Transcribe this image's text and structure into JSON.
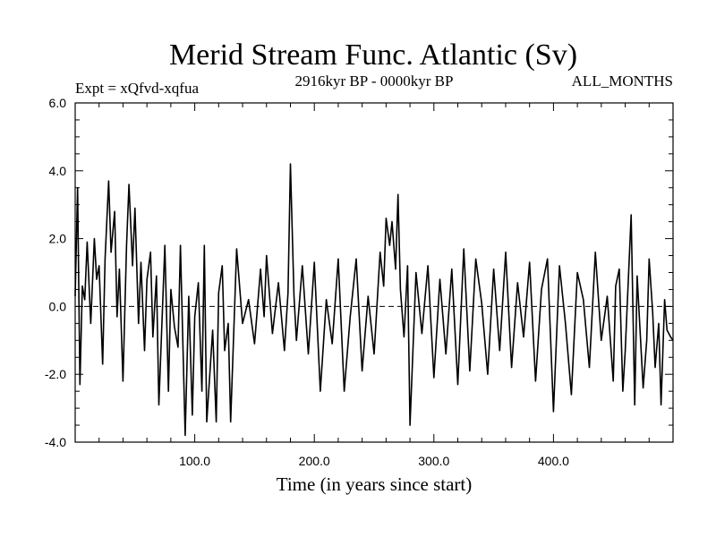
{
  "chart_data": {
    "type": "line",
    "title": "Merid Stream Func. Atlantic (Sv)",
    "subtitle_left": "Expt = xQfvd-xqfua",
    "subtitle_center": "2916kyr BP - 0000kyr BP",
    "subtitle_right": "ALL_MONTHS",
    "xlabel": "Time (in years since start)",
    "ylabel": "",
    "xlim": [
      0,
      500
    ],
    "ylim": [
      -4.0,
      6.0
    ],
    "x_ticks": [
      100.0,
      200.0,
      300.0,
      400.0
    ],
    "x_tick_labels": [
      "100.0",
      "200.0",
      "300.0",
      "400.0"
    ],
    "y_ticks": [
      -4.0,
      -2.0,
      0.0,
      2.0,
      4.0,
      6.0
    ],
    "y_tick_labels": [
      "-4.0",
      "-2.0",
      "0.0",
      "2.0",
      "4.0",
      "6.0"
    ],
    "reference_line": 0.0,
    "series": [
      {
        "name": "Merid Stream Func. Atlantic",
        "x": [
          0,
          2,
          4,
          6,
          8,
          10,
          13,
          16,
          18,
          20,
          23,
          25,
          28,
          30,
          33,
          35,
          37,
          40,
          43,
          45,
          48,
          50,
          53,
          55,
          58,
          60,
          63,
          65,
          68,
          70,
          75,
          78,
          80,
          83,
          86,
          88,
          92,
          95,
          98,
          100,
          103,
          106,
          108,
          110,
          115,
          118,
          120,
          123,
          125,
          128,
          130,
          135,
          140,
          145,
          150,
          155,
          158,
          160,
          165,
          170,
          175,
          178,
          180,
          183,
          185,
          190,
          195,
          200,
          205,
          210,
          215,
          220,
          225,
          230,
          235,
          240,
          245,
          250,
          255,
          258,
          260,
          263,
          265,
          268,
          270,
          272,
          275,
          278,
          280,
          285,
          290,
          295,
          300,
          305,
          310,
          315,
          320,
          325,
          330,
          335,
          340,
          345,
          350,
          355,
          360,
          365,
          370,
          375,
          380,
          385,
          390,
          395,
          400,
          405,
          410,
          415,
          420,
          425,
          430,
          435,
          440,
          445,
          450,
          452,
          455,
          458,
          460,
          465,
          468,
          470,
          475,
          478,
          480,
          483,
          485,
          488,
          490,
          493,
          495,
          498,
          500
        ],
        "values": [
          0.3,
          3.5,
          -2.3,
          0.6,
          0.2,
          1.9,
          -0.5,
          2.0,
          0.8,
          1.2,
          -1.7,
          1.4,
          3.7,
          1.6,
          2.8,
          -0.3,
          1.1,
          -2.2,
          1.8,
          3.6,
          1.2,
          2.9,
          -0.5,
          1.3,
          -1.3,
          0.8,
          1.6,
          -0.9,
          0.9,
          -2.9,
          1.8,
          -2.5,
          0.5,
          -0.6,
          -1.2,
          1.8,
          -3.8,
          0.3,
          -3.2,
          -0.3,
          0.7,
          -2.5,
          1.8,
          -3.4,
          -0.7,
          -3.4,
          0.4,
          1.2,
          -1.3,
          -0.5,
          -3.4,
          1.7,
          -0.5,
          0.2,
          -1.1,
          1.1,
          -0.3,
          1.5,
          -0.8,
          0.7,
          -1.3,
          0.4,
          4.2,
          0.3,
          -1.0,
          1.2,
          -1.4,
          1.3,
          -2.5,
          0.2,
          -1.1,
          1.4,
          -2.5,
          -0.3,
          1.4,
          -1.9,
          0.3,
          -1.4,
          1.6,
          0.6,
          2.6,
          1.8,
          2.5,
          1.1,
          3.3,
          0.5,
          -0.9,
          1.2,
          -3.5,
          1.0,
          -0.8,
          1.2,
          -2.1,
          0.8,
          -1.4,
          1.1,
          -2.3,
          1.7,
          -1.9,
          1.4,
          0.1,
          -2.0,
          1.1,
          -1.3,
          1.6,
          -1.8,
          0.7,
          -0.9,
          1.3,
          -2.2,
          0.5,
          1.4,
          -3.1,
          1.2,
          -0.5,
          -2.6,
          1.0,
          0.2,
          -1.8,
          1.6,
          -1.0,
          0.3,
          -2.2,
          0.6,
          1.1,
          -2.5,
          -1.3,
          2.7,
          -2.9,
          0.9,
          -2.4,
          -1.0,
          1.4,
          -0.2,
          -1.8,
          -0.5,
          -2.9,
          0.2,
          -0.7,
          -0.9,
          -1.0
        ]
      }
    ]
  }
}
